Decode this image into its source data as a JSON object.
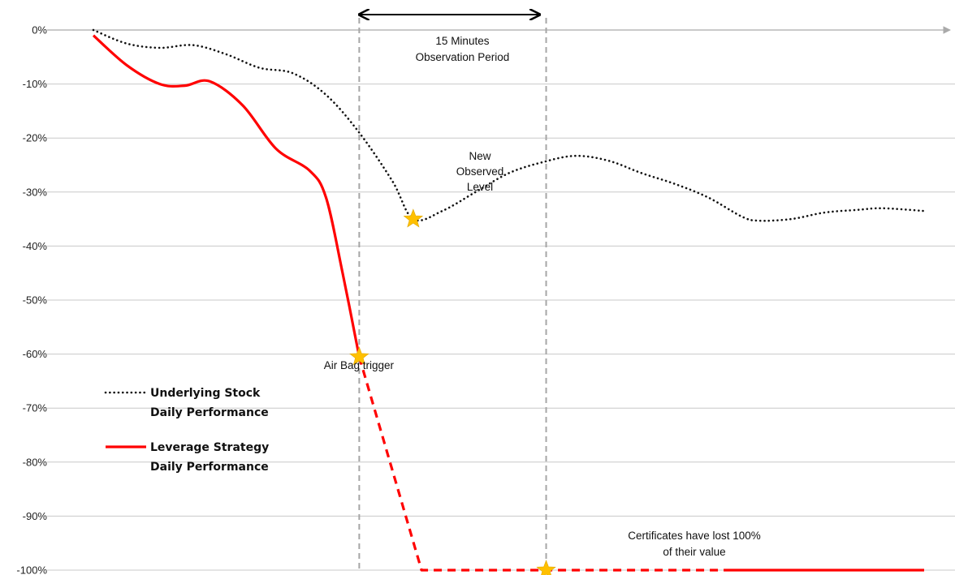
{
  "chart_data": {
    "type": "line",
    "y_ticks": [
      "0%",
      "-10%",
      "-20%",
      "-30%",
      "-40%",
      "-50%",
      "-60%",
      "-70%",
      "-80%",
      "-90%",
      "-100%"
    ],
    "ylim": [
      -100,
      0
    ],
    "xlim": [
      0,
      100
    ],
    "grid": true,
    "legend_position": "left",
    "series": [
      {
        "name": "Underlying Stock Daily Performance",
        "style": "dotted",
        "color": "#111111",
        "x": [
          0,
          4,
          8,
          12,
          16,
          20,
          24,
          28,
          32,
          36,
          38.5,
          42,
          46,
          50,
          54,
          58,
          62,
          66,
          70,
          74,
          78,
          80,
          84,
          88,
          92,
          95,
          100
        ],
        "y": [
          0,
          -2.5,
          -3.3,
          -2.8,
          -4.5,
          -7,
          -8,
          -12,
          -19,
          -28,
          -35,
          -33.5,
          -30,
          -26.5,
          -24.5,
          -23.3,
          -24.2,
          -26.5,
          -28.5,
          -31,
          -34.5,
          -35.3,
          -35,
          -33.8,
          -33.3,
          -33,
          -33.5
        ]
      },
      {
        "name": "Leverage Strategy Daily Performance",
        "style": "solid",
        "color": "#ff0000",
        "x": [
          0,
          4,
          8,
          11,
          14,
          18,
          22,
          26,
          28,
          30,
          32
        ],
        "y": [
          -1,
          -6.5,
          -10,
          -10.3,
          -9.5,
          -14,
          -22,
          -26,
          -31,
          -45,
          -60.5
        ]
      },
      {
        "name": "",
        "style": "dashed",
        "color": "#ff0000",
        "x": [
          32,
          39.5,
          64,
          76
        ],
        "y": [
          -60.5,
          -100,
          -100,
          -100
        ]
      },
      {
        "name": "",
        "style": "solid",
        "color": "#ff0000",
        "x": [
          76,
          100
        ],
        "y": [
          -100,
          -100
        ]
      }
    ],
    "markers": [
      {
        "x": 38.5,
        "y": -35,
        "shape": "star",
        "color": "#ffc000"
      },
      {
        "x": 32,
        "y": -60.5,
        "shape": "star",
        "color": "#ffc000"
      },
      {
        "x": 54.5,
        "y": -100,
        "shape": "star",
        "color": "#ffc000"
      }
    ],
    "vertical_lines": [
      {
        "x": 32,
        "style": "dashed"
      },
      {
        "x": 54.5,
        "style": "dashed"
      }
    ],
    "period_arrow": {
      "x_start": 32,
      "x_end": 54.5
    },
    "annotations": {
      "observation_period": [
        "15 Minutes",
        "Observation Period"
      ],
      "new_level": [
        "New",
        "Observed",
        "Level"
      ],
      "airbag": [
        "Air Bag trigger"
      ],
      "certificates": [
        "Certificates have lost 100%",
        "of their value"
      ]
    },
    "legend": [
      {
        "lines": [
          "Underlying Stock",
          "Daily Performance"
        ],
        "style": "dotted",
        "color": "#111111"
      },
      {
        "lines": [
          "Leverage Strategy",
          "Daily Performance"
        ],
        "style": "solid",
        "color": "#ff0000"
      }
    ]
  }
}
